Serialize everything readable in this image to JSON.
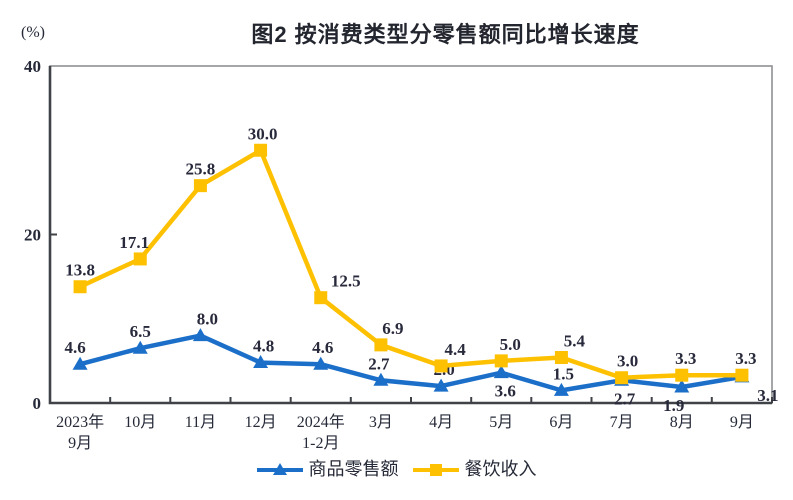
{
  "colors": {
    "background": "#ffffff",
    "text": "#262A38",
    "axis_dark": "#3F4246",
    "border_gray": "#8E9093",
    "goods_blue": "#1C6FC9",
    "catering_yellow": "#FDC101"
  },
  "chart_data": {
    "type": "line",
    "title": "图2 按消费类型分零售额同比增长速度",
    "unit": "(%)",
    "xlabel": "",
    "ylabel": "(%)",
    "ylim": [
      0,
      40
    ],
    "yticks": [
      0,
      20,
      40
    ],
    "grid": false,
    "legend_position": "bottom",
    "categories": [
      "2023年\n9月",
      "10月",
      "11月",
      "12月",
      "2024年\n1-2月",
      "3月",
      "4月",
      "5月",
      "6月",
      "7月",
      "8月",
      "9月"
    ],
    "series": [
      {
        "name": "商品零售额",
        "marker": "triangle",
        "color": "#1C6FC9",
        "values": [
          4.6,
          6.5,
          8.0,
          4.8,
          4.6,
          2.7,
          2.0,
          3.6,
          1.5,
          2.7,
          1.9,
          3.1
        ],
        "label_side": [
          "above",
          "above",
          "above",
          "above",
          "above",
          "above",
          "above",
          "below",
          "above",
          "below",
          "below",
          "below"
        ],
        "label_dx": [
          -5,
          0,
          7,
          3,
          2,
          -2,
          3,
          4,
          2,
          3,
          -8,
          26
        ]
      },
      {
        "name": "餐饮收入",
        "marker": "square",
        "color": "#FDC101",
        "values": [
          13.8,
          17.1,
          25.8,
          30.0,
          12.5,
          6.9,
          4.4,
          5.0,
          5.4,
          3.0,
          3.3,
          3.3
        ],
        "label_side": [
          "above",
          "above",
          "above",
          "above",
          "above",
          "above",
          "above",
          "above",
          "above",
          "above",
          "above",
          "above"
        ],
        "label_dx": [
          0,
          -6,
          0,
          2,
          25,
          12,
          14,
          9,
          13,
          6,
          4,
          4
        ]
      }
    ]
  }
}
